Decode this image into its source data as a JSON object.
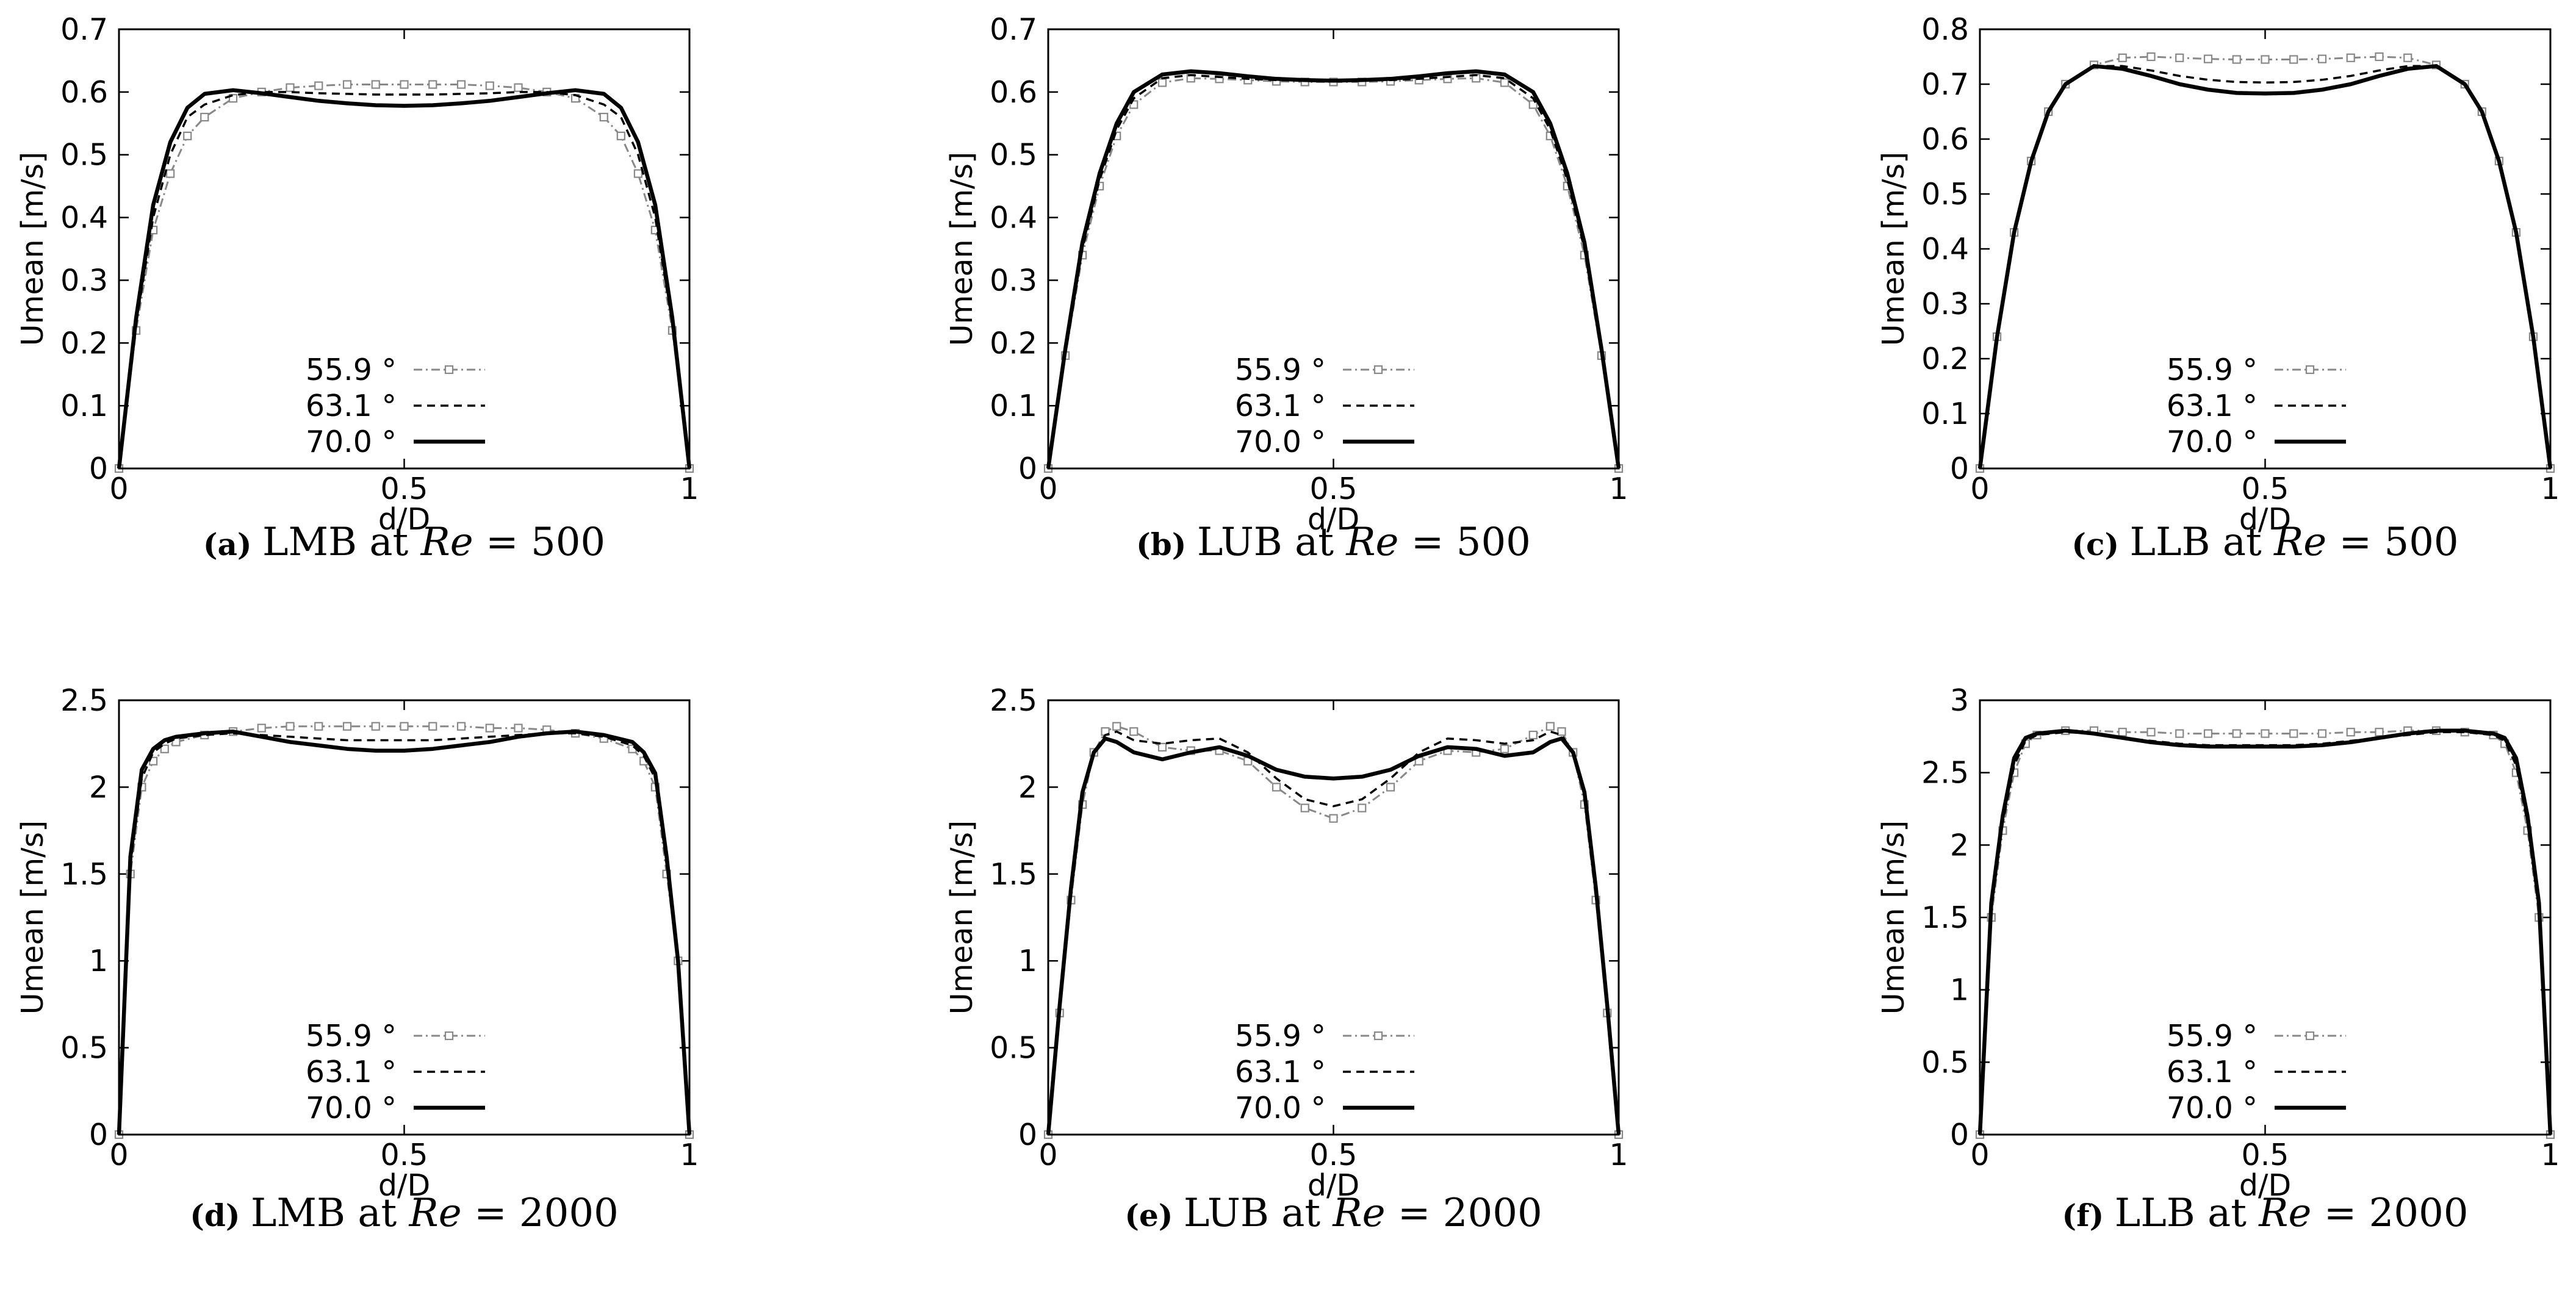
{
  "figure": {
    "legend_entries": [
      "55.9 °",
      "63.1 °",
      "70.0 °"
    ],
    "x_ticks": [
      "0",
      "0.5",
      "1"
    ]
  },
  "chart_data": [
    {
      "type": "line",
      "caption": {
        "tag": "(a)",
        "text": "LMB at",
        "re_value": "500"
      },
      "xlabel": "d/D",
      "ylabel": "Umean [m/s]",
      "xlim": [
        0,
        1
      ],
      "ylim": [
        0,
        0.7
      ],
      "yticks": [
        "0",
        "0.1",
        "0.2",
        "0.3",
        "0.4",
        "0.5",
        "0.6",
        "0.7"
      ],
      "x": [
        0,
        0.03,
        0.06,
        0.09,
        0.12,
        0.15,
        0.2,
        0.25,
        0.3,
        0.35,
        0.4,
        0.45,
        0.5,
        0.55,
        0.6,
        0.65,
        0.7,
        0.75,
        0.8,
        0.85,
        0.88,
        0.91,
        0.94,
        0.97,
        1.0
      ],
      "series": [
        {
          "name": "55.9 °",
          "values": [
            0,
            0.22,
            0.38,
            0.47,
            0.53,
            0.56,
            0.59,
            0.6,
            0.607,
            0.61,
            0.612,
            0.612,
            0.612,
            0.612,
            0.612,
            0.61,
            0.607,
            0.6,
            0.59,
            0.56,
            0.53,
            0.47,
            0.38,
            0.22,
            0
          ]
        },
        {
          "name": "63.1 °",
          "values": [
            0,
            0.23,
            0.4,
            0.5,
            0.56,
            0.58,
            0.595,
            0.6,
            0.6,
            0.598,
            0.597,
            0.596,
            0.596,
            0.596,
            0.597,
            0.598,
            0.6,
            0.6,
            0.595,
            0.58,
            0.56,
            0.5,
            0.4,
            0.23,
            0
          ]
        },
        {
          "name": "70.0 °",
          "values": [
            0,
            0.24,
            0.42,
            0.52,
            0.575,
            0.597,
            0.603,
            0.598,
            0.592,
            0.586,
            0.582,
            0.579,
            0.578,
            0.579,
            0.582,
            0.586,
            0.592,
            0.598,
            0.603,
            0.597,
            0.575,
            0.52,
            0.42,
            0.24,
            0
          ]
        }
      ]
    },
    {
      "type": "line",
      "caption": {
        "tag": "(b)",
        "text": "LUB at",
        "re_value": "500"
      },
      "xlabel": "d/D",
      "ylabel": "Umean [m/s]",
      "xlim": [
        0,
        1
      ],
      "ylim": [
        0,
        0.7
      ],
      "yticks": [
        "0",
        "0.1",
        "0.2",
        "0.3",
        "0.4",
        "0.5",
        "0.6",
        "0.7"
      ],
      "x": [
        0,
        0.03,
        0.06,
        0.09,
        0.12,
        0.15,
        0.2,
        0.25,
        0.3,
        0.35,
        0.4,
        0.45,
        0.5,
        0.55,
        0.6,
        0.65,
        0.7,
        0.75,
        0.8,
        0.85,
        0.88,
        0.91,
        0.94,
        0.97,
        1.0
      ],
      "series": [
        {
          "name": "55.9 °",
          "values": [
            0,
            0.18,
            0.34,
            0.45,
            0.53,
            0.58,
            0.615,
            0.622,
            0.621,
            0.619,
            0.617,
            0.616,
            0.616,
            0.616,
            0.617,
            0.619,
            0.621,
            0.622,
            0.615,
            0.58,
            0.53,
            0.45,
            0.34,
            0.18,
            0
          ]
        },
        {
          "name": "63.1 °",
          "values": [
            0,
            0.19,
            0.35,
            0.46,
            0.54,
            0.59,
            0.622,
            0.627,
            0.624,
            0.621,
            0.619,
            0.618,
            0.618,
            0.618,
            0.619,
            0.621,
            0.624,
            0.627,
            0.622,
            0.59,
            0.54,
            0.46,
            0.35,
            0.19,
            0
          ]
        },
        {
          "name": "70.0 °",
          "values": [
            0,
            0.19,
            0.36,
            0.47,
            0.55,
            0.6,
            0.628,
            0.633,
            0.63,
            0.625,
            0.621,
            0.619,
            0.618,
            0.619,
            0.621,
            0.625,
            0.63,
            0.633,
            0.628,
            0.6,
            0.55,
            0.47,
            0.36,
            0.19,
            0
          ]
        }
      ]
    },
    {
      "type": "line",
      "caption": {
        "tag": "(c)",
        "text": "LLB at",
        "re_value": "500"
      },
      "xlabel": "d/D",
      "ylabel": "Umean [m/s]",
      "xlim": [
        0,
        1
      ],
      "ylim": [
        0,
        0.8
      ],
      "yticks": [
        "0",
        "0.1",
        "0.2",
        "0.3",
        "0.4",
        "0.5",
        "0.6",
        "0.7",
        "0.8"
      ],
      "x": [
        0,
        0.03,
        0.06,
        0.09,
        0.12,
        0.15,
        0.2,
        0.25,
        0.3,
        0.35,
        0.4,
        0.45,
        0.5,
        0.55,
        0.6,
        0.65,
        0.7,
        0.75,
        0.8,
        0.85,
        0.88,
        0.91,
        0.94,
        0.97,
        1.0
      ],
      "series": [
        {
          "name": "55.9 °",
          "values": [
            0,
            0.24,
            0.43,
            0.56,
            0.65,
            0.7,
            0.735,
            0.748,
            0.75,
            0.748,
            0.746,
            0.745,
            0.745,
            0.745,
            0.746,
            0.748,
            0.75,
            0.748,
            0.735,
            0.7,
            0.65,
            0.56,
            0.43,
            0.24,
            0
          ]
        },
        {
          "name": "63.1 °",
          "values": [
            0,
            0.24,
            0.43,
            0.56,
            0.65,
            0.7,
            0.733,
            0.733,
            0.725,
            0.715,
            0.708,
            0.704,
            0.703,
            0.704,
            0.708,
            0.715,
            0.725,
            0.733,
            0.733,
            0.7,
            0.65,
            0.56,
            0.43,
            0.24,
            0
          ]
        },
        {
          "name": "70.0 °",
          "values": [
            0,
            0.24,
            0.43,
            0.56,
            0.65,
            0.7,
            0.733,
            0.728,
            0.715,
            0.7,
            0.69,
            0.684,
            0.683,
            0.684,
            0.69,
            0.7,
            0.715,
            0.728,
            0.733,
            0.7,
            0.65,
            0.56,
            0.43,
            0.24,
            0
          ]
        }
      ]
    },
    {
      "type": "line",
      "caption": {
        "tag": "(d)",
        "text": "LMB at",
        "re_value": "2000"
      },
      "xlabel": "d/D",
      "ylabel": "Umean [m/s]",
      "xlim": [
        0,
        1
      ],
      "ylim": [
        0,
        2.5
      ],
      "yticks": [
        "0",
        "0.5",
        "1",
        "1.5",
        "2",
        "2.5"
      ],
      "x": [
        0,
        0.02,
        0.04,
        0.06,
        0.08,
        0.1,
        0.15,
        0.2,
        0.25,
        0.3,
        0.35,
        0.4,
        0.45,
        0.5,
        0.55,
        0.6,
        0.65,
        0.7,
        0.75,
        0.8,
        0.85,
        0.9,
        0.92,
        0.94,
        0.96,
        0.98,
        1.0
      ],
      "series": [
        {
          "name": "55.9 °",
          "values": [
            0,
            1.5,
            2.0,
            2.15,
            2.22,
            2.26,
            2.3,
            2.32,
            2.34,
            2.35,
            2.35,
            2.35,
            2.35,
            2.35,
            2.35,
            2.35,
            2.34,
            2.34,
            2.33,
            2.31,
            2.28,
            2.22,
            2.15,
            2.0,
            1.5,
            1.0,
            0
          ]
        },
        {
          "name": "63.1 °",
          "values": [
            0,
            1.55,
            2.05,
            2.2,
            2.25,
            2.28,
            2.3,
            2.31,
            2.3,
            2.29,
            2.28,
            2.27,
            2.27,
            2.27,
            2.27,
            2.28,
            2.29,
            2.3,
            2.31,
            2.31,
            2.29,
            2.24,
            2.18,
            2.05,
            1.55,
            1.0,
            0
          ]
        },
        {
          "name": "70.0 °",
          "values": [
            0,
            1.6,
            2.1,
            2.22,
            2.27,
            2.29,
            2.31,
            2.32,
            2.29,
            2.26,
            2.24,
            2.22,
            2.21,
            2.21,
            2.22,
            2.24,
            2.26,
            2.29,
            2.31,
            2.32,
            2.3,
            2.26,
            2.2,
            2.08,
            1.6,
            1.0,
            0
          ]
        }
      ]
    },
    {
      "type": "line",
      "caption": {
        "tag": "(e)",
        "text": "LUB at",
        "re_value": "2000"
      },
      "xlabel": "d/D",
      "ylabel": "Umean [m/s]",
      "xlim": [
        0,
        1
      ],
      "ylim": [
        0,
        2.5
      ],
      "yticks": [
        "0",
        "0.5",
        "1",
        "1.5",
        "2",
        "2.5"
      ],
      "x": [
        0,
        0.02,
        0.04,
        0.06,
        0.08,
        0.1,
        0.12,
        0.15,
        0.2,
        0.25,
        0.3,
        0.35,
        0.4,
        0.45,
        0.5,
        0.55,
        0.6,
        0.65,
        0.7,
        0.75,
        0.8,
        0.85,
        0.88,
        0.9,
        0.92,
        0.94,
        0.96,
        0.98,
        1.0
      ],
      "series": [
        {
          "name": "55.9 °",
          "values": [
            0,
            0.7,
            1.35,
            1.9,
            2.2,
            2.32,
            2.35,
            2.32,
            2.23,
            2.21,
            2.21,
            2.15,
            2.0,
            1.88,
            1.82,
            1.88,
            2.0,
            2.15,
            2.21,
            2.2,
            2.22,
            2.3,
            2.35,
            2.32,
            2.2,
            1.9,
            1.35,
            0.7,
            0
          ]
        },
        {
          "name": "63.1 °",
          "values": [
            0,
            0.72,
            1.4,
            1.95,
            2.2,
            2.3,
            2.32,
            2.27,
            2.25,
            2.27,
            2.28,
            2.2,
            2.05,
            1.93,
            1.89,
            1.93,
            2.05,
            2.2,
            2.28,
            2.27,
            2.25,
            2.27,
            2.32,
            2.3,
            2.2,
            1.95,
            1.4,
            0.72,
            0
          ]
        },
        {
          "name": "70.0 °",
          "values": [
            0,
            0.74,
            1.42,
            1.97,
            2.2,
            2.28,
            2.26,
            2.2,
            2.16,
            2.2,
            2.23,
            2.18,
            2.1,
            2.06,
            2.05,
            2.06,
            2.1,
            2.18,
            2.23,
            2.22,
            2.18,
            2.2,
            2.26,
            2.28,
            2.2,
            1.97,
            1.42,
            0.74,
            0
          ]
        }
      ]
    },
    {
      "type": "line",
      "caption": {
        "tag": "(f)",
        "text": "LLB at",
        "re_value": "2000"
      },
      "xlabel": "d/D",
      "ylabel": "Umean [m/s]",
      "xlim": [
        0,
        1
      ],
      "ylim": [
        0,
        3
      ],
      "yticks": [
        "0",
        "0.5",
        "1",
        "1.5",
        "2",
        "2.5",
        "3"
      ],
      "x": [
        0,
        0.02,
        0.04,
        0.06,
        0.08,
        0.1,
        0.15,
        0.2,
        0.25,
        0.3,
        0.35,
        0.4,
        0.45,
        0.5,
        0.55,
        0.6,
        0.65,
        0.7,
        0.75,
        0.8,
        0.85,
        0.9,
        0.92,
        0.94,
        0.96,
        0.98,
        1.0
      ],
      "series": [
        {
          "name": "55.9 °",
          "values": [
            0,
            1.5,
            2.1,
            2.5,
            2.7,
            2.76,
            2.79,
            2.79,
            2.78,
            2.78,
            2.77,
            2.77,
            2.77,
            2.77,
            2.77,
            2.77,
            2.78,
            2.78,
            2.79,
            2.79,
            2.78,
            2.76,
            2.7,
            2.5,
            2.1,
            1.5,
            0
          ]
        },
        {
          "name": "63.1 °",
          "values": [
            0,
            1.55,
            2.15,
            2.55,
            2.72,
            2.76,
            2.78,
            2.77,
            2.74,
            2.72,
            2.7,
            2.69,
            2.69,
            2.69,
            2.69,
            2.7,
            2.72,
            2.74,
            2.76,
            2.78,
            2.78,
            2.76,
            2.72,
            2.55,
            2.15,
            1.55,
            0
          ]
        },
        {
          "name": "70.0 °",
          "values": [
            0,
            1.6,
            2.2,
            2.6,
            2.74,
            2.77,
            2.79,
            2.77,
            2.74,
            2.71,
            2.69,
            2.68,
            2.68,
            2.68,
            2.68,
            2.69,
            2.71,
            2.74,
            2.77,
            2.79,
            2.79,
            2.77,
            2.74,
            2.6,
            2.2,
            1.6,
            0
          ]
        }
      ]
    }
  ]
}
